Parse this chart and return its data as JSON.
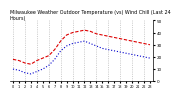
{
  "title": "Milwaukee Weather Outdoor Temperature (vs) Wind Chill (Last 24 Hours)",
  "temp": [
    18,
    17,
    15,
    14,
    17,
    19,
    21,
    26,
    33,
    38,
    40,
    41,
    42,
    41,
    39,
    38,
    37,
    36,
    35,
    34,
    33,
    32,
    31,
    30
  ],
  "windchill": [
    10,
    9,
    7,
    6,
    8,
    10,
    13,
    18,
    25,
    29,
    31,
    32,
    33,
    31,
    29,
    27,
    26,
    25,
    24,
    23,
    22,
    21,
    20,
    19
  ],
  "hours": [
    0,
    1,
    2,
    3,
    4,
    5,
    6,
    7,
    8,
    9,
    10,
    11,
    12,
    13,
    14,
    15,
    16,
    17,
    18,
    19,
    20,
    21,
    22,
    23
  ],
  "temp_color": "#dd0000",
  "windchill_color": "#0000cc",
  "grid_color": "#aaaaaa",
  "bg_color": "#ffffff",
  "ylim": [
    0,
    50
  ],
  "yticks": [
    0,
    10,
    20,
    30,
    40,
    50
  ],
  "title_fontsize": 3.5,
  "tick_fontsize": 3.0
}
